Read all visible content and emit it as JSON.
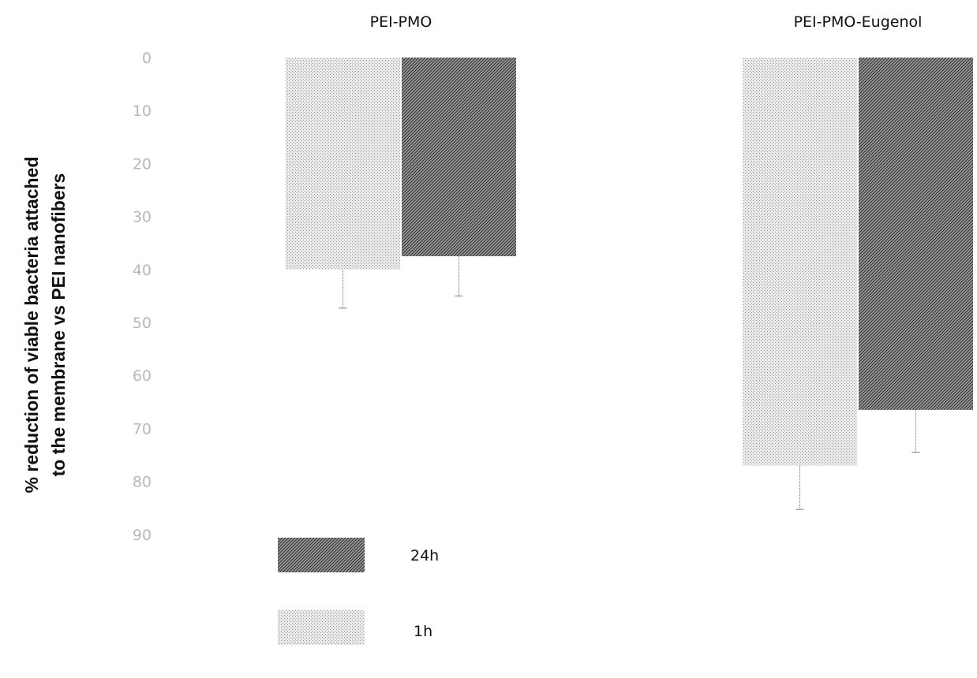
{
  "chart_data": {
    "type": "bar",
    "orientation": "vertical-inverted",
    "categories": [
      "PEI-PMO",
      "PEI-PMO-Eugenol"
    ],
    "series": [
      {
        "name": "1h",
        "values": [
          40,
          77
        ],
        "errors": [
          7.3,
          8.3
        ],
        "pattern": "light"
      },
      {
        "name": "24h",
        "values": [
          37.5,
          66.5
        ],
        "errors": [
          7.5,
          8.0
        ],
        "pattern": "dark"
      }
    ],
    "ylabel_lines": [
      "% reduction of viable bacteria attached",
      "to the membrane vs PEI nanofibers"
    ],
    "yticks": [
      0,
      10,
      20,
      30,
      40,
      50,
      60,
      70,
      80,
      90
    ],
    "ylim": [
      0,
      90
    ],
    "y_inverted": true,
    "grid": false,
    "legend": {
      "placement": "bottom-left",
      "entries": [
        {
          "label": "24h",
          "pattern": "dark"
        },
        {
          "label": "1h",
          "pattern": "light"
        }
      ]
    }
  }
}
